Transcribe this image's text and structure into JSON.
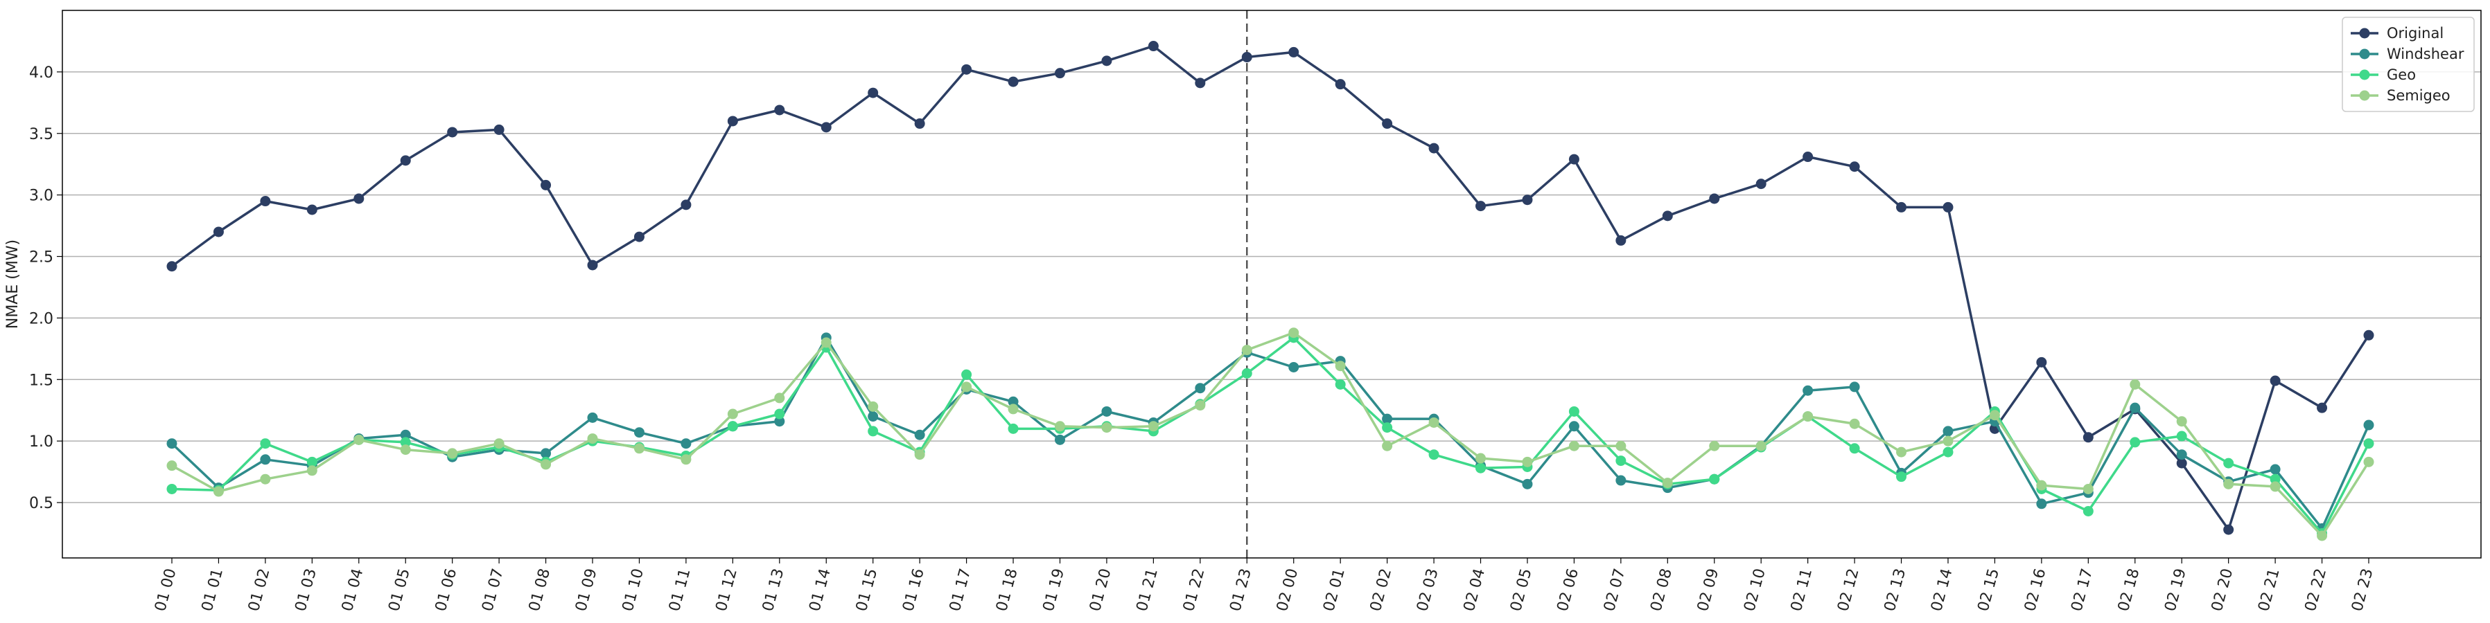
{
  "chart_data": {
    "type": "line",
    "ylabel": "NMAE (MW)",
    "xlabel": "",
    "ylim": [
      0.05,
      4.5
    ],
    "yticks": [
      0.5,
      1.0,
      1.5,
      2.0,
      2.5,
      3.0,
      3.5,
      4.0
    ],
    "grid": "horizontal",
    "legend_position": "top-right",
    "divider_after_category": "01 23",
    "categories": [
      "01 00",
      "01 01",
      "01 02",
      "01 03",
      "01 04",
      "01 05",
      "01 06",
      "01 07",
      "01 08",
      "01 09",
      "01 10",
      "01 11",
      "01 12",
      "01 13",
      "01 14",
      "01 15",
      "01 16",
      "01 17",
      "01 18",
      "01 19",
      "01 20",
      "01 21",
      "01 22",
      "01 23",
      "02 00",
      "02 01",
      "02 02",
      "02 03",
      "02 04",
      "02 05",
      "02 06",
      "02 07",
      "02 08",
      "02 09",
      "02 10",
      "02 11",
      "02 12",
      "02 13",
      "02 14",
      "02 15",
      "02 16",
      "02 17",
      "02 18",
      "02 19",
      "02 20",
      "02 21",
      "02 22",
      "02 23"
    ],
    "series": [
      {
        "name": "Original",
        "color": "#2c3e63",
        "values": [
          2.42,
          2.7,
          2.95,
          2.88,
          2.97,
          3.28,
          3.51,
          3.53,
          3.08,
          2.43,
          2.66,
          2.92,
          3.6,
          3.69,
          3.55,
          3.83,
          3.58,
          4.02,
          3.92,
          3.99,
          4.09,
          4.21,
          3.91,
          4.12,
          4.16,
          3.9,
          3.58,
          3.38,
          2.91,
          2.96,
          3.29,
          2.63,
          2.83,
          2.97,
          3.09,
          3.31,
          3.23,
          2.9,
          2.9,
          1.1,
          1.64,
          1.03,
          1.26,
          0.82,
          0.28,
          1.49,
          1.27,
          1.86
        ]
      },
      {
        "name": "Windshear",
        "color": "#2e8b8b",
        "values": [
          0.98,
          0.62,
          0.85,
          0.8,
          1.02,
          1.05,
          0.87,
          0.93,
          0.9,
          1.19,
          1.07,
          0.98,
          1.12,
          1.16,
          1.84,
          1.2,
          1.05,
          1.42,
          1.32,
          1.01,
          1.24,
          1.15,
          1.43,
          1.72,
          1.6,
          1.65,
          1.18,
          1.18,
          0.8,
          0.65,
          1.12,
          0.68,
          0.62,
          0.69,
          0.96,
          1.41,
          1.44,
          0.74,
          1.08,
          1.16,
          0.49,
          0.58,
          1.27,
          0.89,
          0.67,
          0.77,
          0.29,
          1.13
        ]
      },
      {
        "name": "Geo",
        "color": "#3fd98a",
        "values": [
          0.61,
          0.6,
          0.98,
          0.83,
          1.01,
          0.99,
          0.89,
          0.95,
          0.83,
          1.0,
          0.95,
          0.88,
          1.12,
          1.22,
          1.76,
          1.08,
          0.91,
          1.54,
          1.1,
          1.1,
          1.12,
          1.08,
          1.3,
          1.55,
          1.84,
          1.46,
          1.11,
          0.89,
          0.78,
          0.79,
          1.24,
          0.84,
          0.65,
          0.69,
          0.95,
          1.2,
          0.94,
          0.71,
          0.91,
          1.24,
          0.61,
          0.43,
          0.99,
          1.04,
          0.82,
          0.69,
          0.25,
          0.98
        ]
      },
      {
        "name": "Semigeo",
        "color": "#9dd18c",
        "values": [
          0.8,
          0.59,
          0.69,
          0.76,
          1.01,
          0.93,
          0.9,
          0.98,
          0.81,
          1.02,
          0.94,
          0.85,
          1.22,
          1.35,
          1.8,
          1.28,
          0.89,
          1.44,
          1.26,
          1.12,
          1.11,
          1.12,
          1.29,
          1.74,
          1.88,
          1.61,
          0.96,
          1.15,
          0.86,
          0.83,
          0.96,
          0.96,
          0.66,
          0.96,
          0.96,
          1.2,
          1.14,
          0.91,
          1.0,
          1.21,
          0.64,
          0.61,
          1.46,
          1.16,
          0.65,
          0.63,
          0.23,
          0.83
        ]
      }
    ]
  }
}
